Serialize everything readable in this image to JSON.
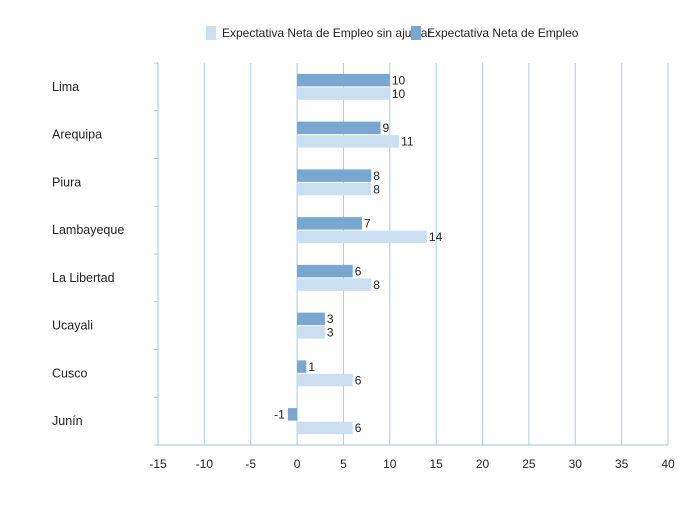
{
  "chart_data": {
    "type": "bar",
    "orientation": "horizontal",
    "categories": [
      "Lima",
      "Arequipa",
      "Piura",
      "Lambayeque",
      "La Libertad",
      "Ucayali",
      "Cusco",
      "Junín"
    ],
    "series": [
      {
        "name": "Expectativa Neta de Empleo",
        "values": [
          10,
          9,
          8,
          7,
          6,
          3,
          1,
          -1
        ],
        "color": "#7aa7d0"
      },
      {
        "name": "Expectativa Neta de Empleo sin ajustar",
        "values": [
          10,
          11,
          8,
          14,
          8,
          3,
          6,
          6
        ],
        "color": "#ccdff0"
      }
    ],
    "legend_order": [
      "Expectativa Neta de Empleo sin ajustar",
      "Expectativa Neta de Empleo"
    ],
    "xlim": [
      -15,
      40
    ],
    "xticks": [
      -15,
      -10,
      -5,
      0,
      5,
      10,
      15,
      20,
      25,
      30,
      35,
      40
    ],
    "grid": true,
    "legend_position": "top",
    "axis_color": "#9fc4e7",
    "grid_color": "#a9cbe9"
  }
}
